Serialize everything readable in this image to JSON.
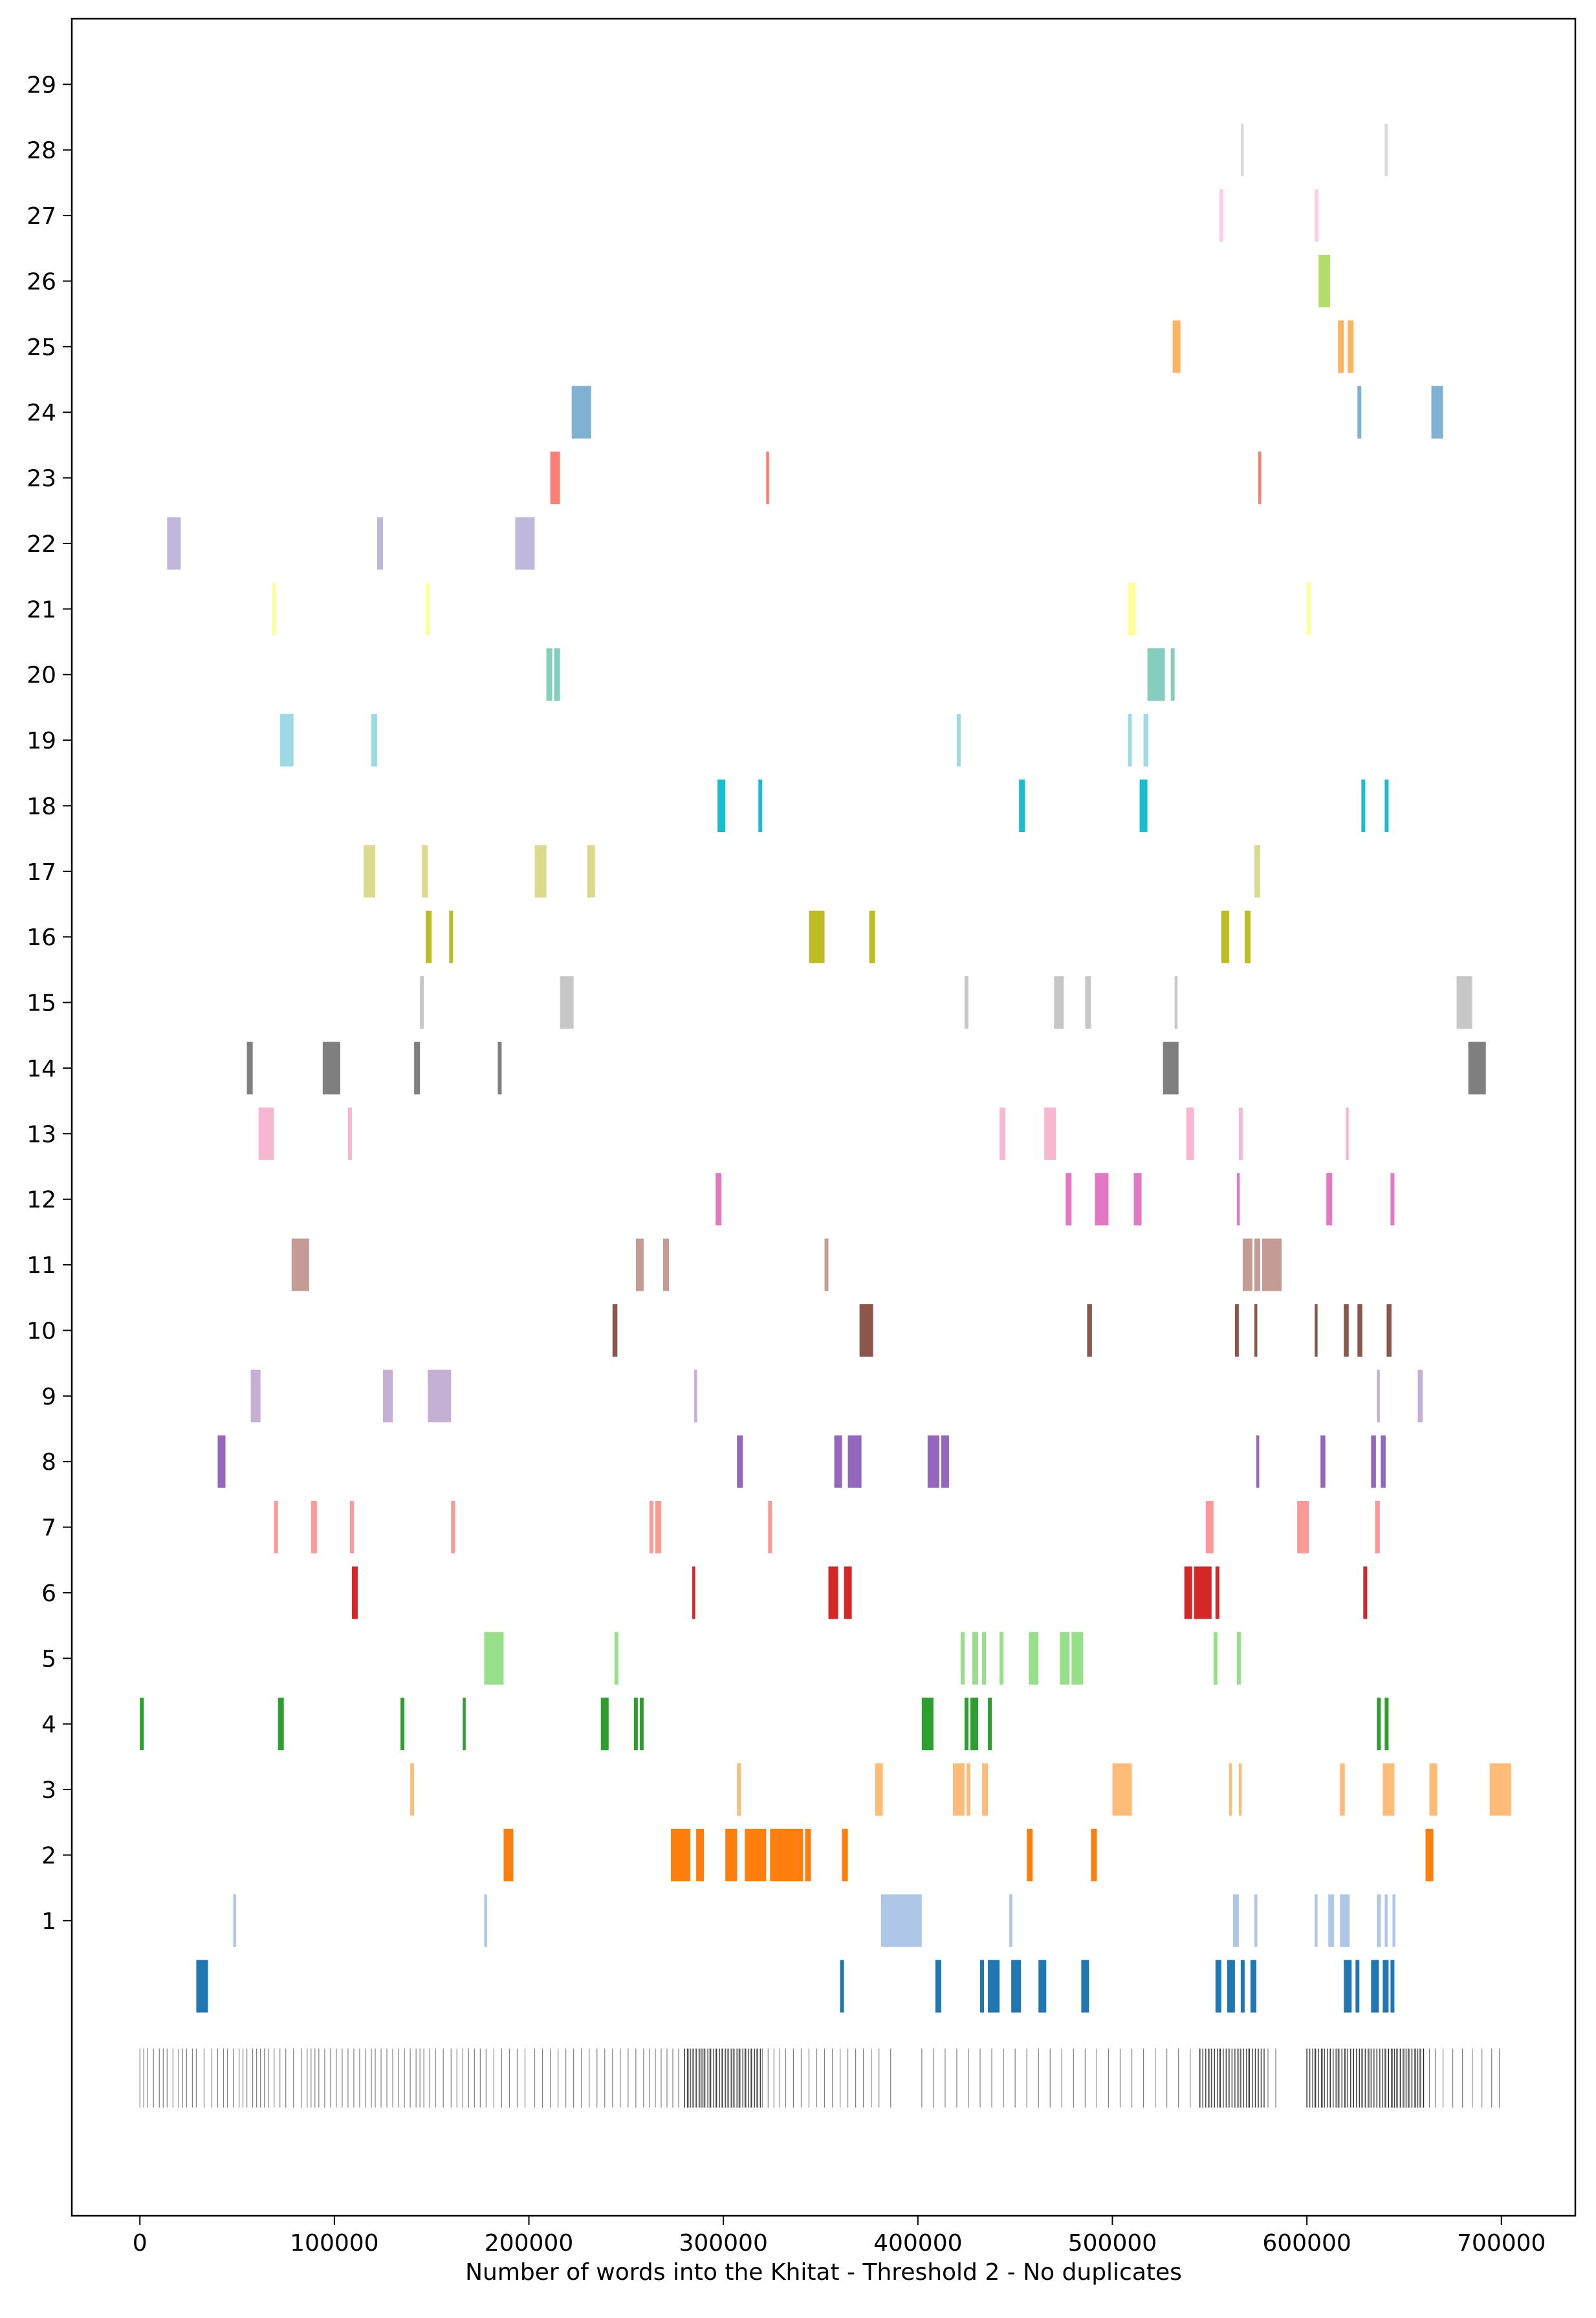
{
  "chart_data": {
    "type": "broken-barh",
    "xlabel": "Number of words into the Khitat - Threshold 2 - No duplicates",
    "ylabel": "",
    "title": "",
    "xlim": [
      -35000,
      738000
    ],
    "ylim": [
      -3.5,
      30.0
    ],
    "xticks": [
      0,
      100000,
      200000,
      300000,
      400000,
      500000,
      600000,
      700000
    ],
    "yticks": [
      1,
      2,
      3,
      4,
      5,
      6,
      7,
      8,
      9,
      10,
      11,
      12,
      13,
      14,
      15,
      16,
      17,
      18,
      19,
      20,
      21,
      22,
      23,
      24,
      25,
      26,
      27,
      28,
      29
    ],
    "grid": false,
    "legend": "none",
    "rug_row": {
      "y": -1.4,
      "color": "#000000",
      "positions": [
        0,
        2000,
        4000,
        7000,
        10000,
        12000,
        14000,
        17000,
        20000,
        22000,
        24000,
        27000,
        29000,
        33000,
        37000,
        40000,
        43000,
        45000,
        48000,
        51000,
        53000,
        55000,
        58000,
        60000,
        62000,
        64000,
        66000,
        69000,
        72000,
        75000,
        79000,
        83000,
        86000,
        88000,
        90000,
        92000,
        95000,
        98000,
        101000,
        104000,
        107000,
        110000,
        113000,
        116000,
        119000,
        121000,
        124000,
        127000,
        130000,
        133000,
        136000,
        139000,
        142000,
        144000,
        146000,
        149000,
        152000,
        156000,
        160000,
        163000,
        166000,
        169000,
        172000,
        175000,
        178000,
        182000,
        186000,
        190000,
        194000,
        198000,
        203000,
        207000,
        211000,
        215000,
        219000,
        223000,
        227000,
        231000,
        235000,
        239000,
        243000,
        247000,
        251000,
        255000,
        259000,
        262000,
        265000,
        268000,
        271000,
        274000,
        277000,
        280000,
        282000,
        284000,
        286000,
        288000,
        290000,
        293000,
        296000,
        299000,
        302000,
        305000,
        308000,
        311000,
        314000,
        317000,
        320000,
        323000,
        326000,
        329000,
        332000,
        336000,
        340000,
        344000,
        348000,
        352000,
        356000,
        360000,
        364000,
        368000,
        372000,
        376000,
        380000,
        386000,
        402000,
        408000,
        414000,
        420000,
        426000,
        432000,
        438000,
        444000,
        450000,
        456000,
        462000,
        468000,
        474000,
        480000,
        486000,
        492000,
        498000,
        504000,
        510000,
        516000,
        522000,
        528000,
        534000,
        540000,
        545000,
        550000,
        555000,
        560000,
        565000,
        570000,
        575000,
        580000,
        584000,
        600000,
        604000,
        608000,
        612000,
        616000,
        620000,
        624000,
        628000,
        632000,
        636000,
        640000,
        642000,
        644000,
        646000,
        648000,
        650000,
        652000,
        654000,
        656000,
        658000,
        660000,
        663000,
        666000,
        670000,
        675000,
        680000,
        685000,
        690000,
        695000,
        699000
      ],
      "dense_ranges": [
        [
          280000,
          320000
        ],
        [
          545000,
          578000
        ],
        [
          600000,
          660000
        ]
      ]
    },
    "series": [
      {
        "y": 0,
        "color": "#1f77b4",
        "spans": [
          [
            29000,
            35000
          ],
          [
            360000,
            362000
          ],
          [
            409000,
            412000
          ],
          [
            432000,
            434000
          ],
          [
            436000,
            442000
          ],
          [
            448000,
            453000
          ],
          [
            462000,
            466000
          ],
          [
            484000,
            488000
          ],
          [
            553000,
            556000
          ],
          [
            559000,
            563000
          ],
          [
            566000,
            568000
          ],
          [
            571000,
            574000
          ],
          [
            619000,
            623000
          ],
          [
            625000,
            627000
          ],
          [
            633000,
            637000
          ],
          [
            639000,
            642000
          ],
          [
            643000,
            645000
          ]
        ]
      },
      {
        "y": 1,
        "color": "#aec7e8",
        "spans": [
          [
            48000,
            49500
          ],
          [
            177000,
            178500
          ],
          [
            381000,
            402000
          ],
          [
            447000,
            448500
          ],
          [
            562000,
            565000
          ],
          [
            573000,
            574500
          ],
          [
            604000,
            605500
          ],
          [
            611000,
            614000
          ],
          [
            617000,
            622000
          ],
          [
            636000,
            638000
          ],
          [
            640000,
            641500
          ],
          [
            644000,
            645500
          ]
        ]
      },
      {
        "y": 2,
        "color": "#ff7f0e",
        "spans": [
          [
            187000,
            192000
          ],
          [
            273000,
            283000
          ],
          [
            286000,
            290000
          ],
          [
            301000,
            307000
          ],
          [
            311000,
            322000
          ],
          [
            324000,
            341000
          ],
          [
            342000,
            345000
          ],
          [
            361000,
            364000
          ],
          [
            456000,
            459000
          ],
          [
            489000,
            492000
          ],
          [
            661000,
            665000
          ]
        ]
      },
      {
        "y": 3,
        "color": "#ffbb78",
        "spans": [
          [
            139000,
            141000
          ],
          [
            307000,
            309000
          ],
          [
            378000,
            382000
          ],
          [
            418000,
            424000
          ],
          [
            425000,
            427000
          ],
          [
            433000,
            436000
          ],
          [
            500000,
            510000
          ],
          [
            560000,
            561500
          ],
          [
            565000,
            566500
          ],
          [
            617000,
            619500
          ],
          [
            639000,
            645000
          ],
          [
            663000,
            667000
          ],
          [
            694000,
            705000
          ]
        ]
      },
      {
        "y": 4,
        "color": "#2ca02c",
        "spans": [
          [
            0,
            2000
          ],
          [
            71000,
            74000
          ],
          [
            134000,
            136000
          ],
          [
            166000,
            167500
          ],
          [
            237000,
            241000
          ],
          [
            254000,
            256000
          ],
          [
            257000,
            259000
          ],
          [
            402000,
            408000
          ],
          [
            424000,
            426000
          ],
          [
            427000,
            431000
          ],
          [
            436000,
            438000
          ],
          [
            636000,
            638000
          ],
          [
            640000,
            642000
          ]
        ]
      },
      {
        "y": 5,
        "color": "#98df8a",
        "spans": [
          [
            177000,
            187000
          ],
          [
            244000,
            246000
          ],
          [
            422000,
            424000
          ],
          [
            428000,
            431000
          ],
          [
            433000,
            435000
          ],
          [
            442000,
            444000
          ],
          [
            457000,
            462000
          ],
          [
            473000,
            478000
          ],
          [
            479000,
            485000
          ],
          [
            552000,
            554000
          ],
          [
            564000,
            566000
          ]
        ]
      },
      {
        "y": 6,
        "color": "#d62728",
        "spans": [
          [
            109000,
            112000
          ],
          [
            284000,
            285500
          ],
          [
            354000,
            359000
          ],
          [
            362000,
            366000
          ],
          [
            537000,
            541000
          ],
          [
            542000,
            551000
          ],
          [
            553000,
            555000
          ],
          [
            629000,
            631000
          ]
        ]
      },
      {
        "y": 7,
        "color": "#ff9896",
        "spans": [
          [
            69000,
            71000
          ],
          [
            88000,
            91000
          ],
          [
            108000,
            110000
          ],
          [
            160000,
            162000
          ],
          [
            262000,
            264000
          ],
          [
            265000,
            268000
          ],
          [
            323000,
            325000
          ],
          [
            548000,
            552000
          ],
          [
            595000,
            601000
          ],
          [
            635000,
            637500
          ]
        ]
      },
      {
        "y": 8,
        "color": "#9467bd",
        "spans": [
          [
            40000,
            44000
          ],
          [
            307000,
            310000
          ],
          [
            357000,
            361000
          ],
          [
            364000,
            371000
          ],
          [
            405000,
            411000
          ],
          [
            412000,
            416000
          ],
          [
            574000,
            575500
          ],
          [
            607000,
            609500
          ],
          [
            633000,
            635500
          ],
          [
            638000,
            640500
          ]
        ]
      },
      {
        "y": 9,
        "color": "#c5b0d5",
        "spans": [
          [
            57000,
            62000
          ],
          [
            125000,
            130000
          ],
          [
            148000,
            160000
          ],
          [
            285000,
            286500
          ],
          [
            636000,
            637500
          ],
          [
            657000,
            659500
          ]
        ]
      },
      {
        "y": 10,
        "color": "#8c564b",
        "spans": [
          [
            243000,
            245500
          ],
          [
            370000,
            377000
          ],
          [
            487000,
            489500
          ],
          [
            563000,
            565000
          ],
          [
            573000,
            574500
          ],
          [
            604000,
            605500
          ],
          [
            619000,
            621500
          ],
          [
            626000,
            628500
          ],
          [
            641000,
            643500
          ]
        ]
      },
      {
        "y": 11,
        "color": "#c49c94",
        "spans": [
          [
            78000,
            87000
          ],
          [
            255000,
            259000
          ],
          [
            269000,
            272000
          ],
          [
            352000,
            354000
          ],
          [
            567000,
            572000
          ],
          [
            573000,
            576000
          ],
          [
            577000,
            587000
          ]
        ]
      },
      {
        "y": 12,
        "color": "#e377c2",
        "spans": [
          [
            296000,
            299000
          ],
          [
            476000,
            479000
          ],
          [
            491000,
            498000
          ],
          [
            511000,
            515000
          ],
          [
            564000,
            565500
          ],
          [
            610000,
            613000
          ],
          [
            643000,
            645000
          ]
        ]
      },
      {
        "y": 13,
        "color": "#f7b6d2",
        "spans": [
          [
            61000,
            69000
          ],
          [
            107000,
            109000
          ],
          [
            442000,
            445000
          ],
          [
            465000,
            471000
          ],
          [
            538000,
            542000
          ],
          [
            565000,
            567000
          ],
          [
            620000,
            621500
          ]
        ]
      },
      {
        "y": 14,
        "color": "#7f7f7f",
        "spans": [
          [
            55000,
            58000
          ],
          [
            94000,
            103000
          ],
          [
            141000,
            144000
          ],
          [
            184000,
            186000
          ],
          [
            526000,
            534000
          ],
          [
            683000,
            692000
          ]
        ]
      },
      {
        "y": 15,
        "color": "#c7c7c7",
        "spans": [
          [
            144000,
            146000
          ],
          [
            216000,
            223000
          ],
          [
            424000,
            426000
          ],
          [
            470000,
            475000
          ],
          [
            486000,
            489000
          ],
          [
            532000,
            533500
          ],
          [
            677000,
            685000
          ]
        ]
      },
      {
        "y": 16,
        "color": "#bcbd22",
        "spans": [
          [
            147000,
            150000
          ],
          [
            159000,
            161000
          ],
          [
            344000,
            352000
          ],
          [
            375000,
            378000
          ],
          [
            556000,
            560000
          ],
          [
            568000,
            571000
          ]
        ]
      },
      {
        "y": 17,
        "color": "#dbdb8d",
        "spans": [
          [
            115000,
            121000
          ],
          [
            145000,
            148000
          ],
          [
            203000,
            209000
          ],
          [
            230000,
            234000
          ],
          [
            573000,
            576000
          ]
        ]
      },
      {
        "y": 18,
        "color": "#17becf",
        "spans": [
          [
            297000,
            301000
          ],
          [
            318000,
            320000
          ],
          [
            452000,
            455000
          ],
          [
            514000,
            518000
          ],
          [
            628000,
            630000
          ],
          [
            640000,
            642000
          ]
        ]
      },
      {
        "y": 19,
        "color": "#9edae5",
        "spans": [
          [
            72000,
            79000
          ],
          [
            119000,
            122000
          ],
          [
            420000,
            422000
          ],
          [
            508000,
            510000
          ],
          [
            516000,
            518500
          ]
        ]
      },
      {
        "y": 20,
        "color": "#85cdbd",
        "spans": [
          [
            209000,
            212000
          ],
          [
            213000,
            216000
          ],
          [
            518000,
            527000
          ],
          [
            530000,
            532000
          ]
        ]
      },
      {
        "y": 21,
        "color": "#ffff99",
        "spans": [
          [
            68000,
            70000
          ],
          [
            147000,
            149000
          ],
          [
            508000,
            512000
          ],
          [
            600000,
            602000
          ]
        ]
      },
      {
        "y": 22,
        "color": "#bfb8da",
        "spans": [
          [
            14000,
            21000
          ],
          [
            122000,
            125000
          ],
          [
            193000,
            203000
          ]
        ]
      },
      {
        "y": 23,
        "color": "#f98072",
        "spans": [
          [
            211000,
            216000
          ],
          [
            322000,
            323500
          ],
          [
            575000,
            576500
          ]
        ]
      },
      {
        "y": 24,
        "color": "#80b1d3",
        "spans": [
          [
            222000,
            232000
          ],
          [
            626000,
            628000
          ],
          [
            664000,
            670000
          ]
        ]
      },
      {
        "y": 25,
        "color": "#fcb462",
        "spans": [
          [
            531000,
            535000
          ],
          [
            616000,
            619000
          ],
          [
            621000,
            624000
          ]
        ]
      },
      {
        "y": 26,
        "color": "#b3de69",
        "spans": [
          [
            606000,
            612000
          ]
        ]
      },
      {
        "y": 27,
        "color": "#fccde5",
        "spans": [
          [
            555000,
            557000
          ],
          [
            604000,
            606000
          ]
        ]
      },
      {
        "y": 28,
        "color": "#d9d9d9",
        "spans": [
          [
            566000,
            567500
          ],
          [
            640000,
            641500
          ]
        ]
      }
    ]
  }
}
